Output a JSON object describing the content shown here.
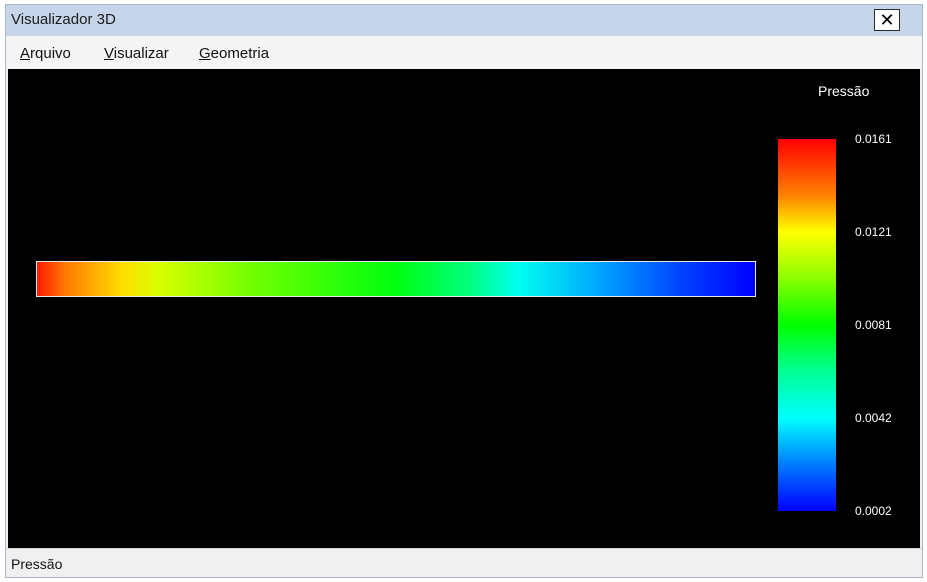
{
  "window": {
    "title": "Visualizador 3D",
    "close_symbol": "✕"
  },
  "menu": {
    "items": [
      {
        "label_ul": "A",
        "label_rest": "rquivo"
      },
      {
        "label_ul": "V",
        "label_rest": "isualizar"
      },
      {
        "label_ul": "G",
        "label_rest": "eometria"
      }
    ]
  },
  "viewport": {
    "background": "#000000",
    "legend_title": "Pressão",
    "legend_ticks": [
      "0.0161",
      "0.0121",
      "0.0081",
      "0.0042",
      "0.0002"
    ],
    "colormap": [
      "#ff0000",
      "#ffff00",
      "#00ff00",
      "#00ffff",
      "#0000ff"
    ]
  },
  "status": {
    "text": "Pressão"
  }
}
